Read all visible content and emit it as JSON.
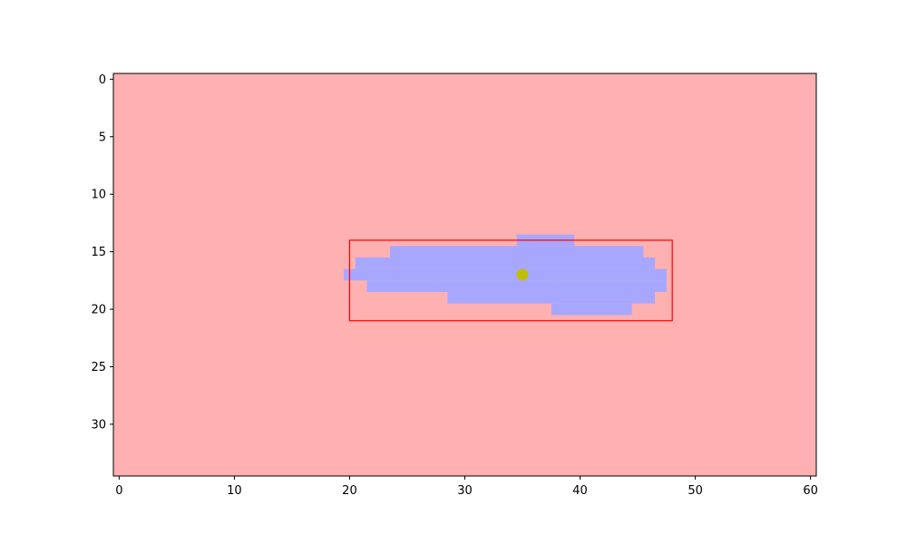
{
  "chart_data": {
    "type": "heatmap",
    "title": "",
    "xlabel": "",
    "ylabel": "",
    "xlim": [
      -0.5,
      60.5
    ],
    "ylim": [
      34.5,
      -0.5
    ],
    "x_ticks": [
      0,
      10,
      20,
      30,
      40,
      50,
      60
    ],
    "y_ticks": [
      0,
      5,
      10,
      15,
      20,
      25,
      30
    ],
    "x_tick_labels": [
      "0",
      "10",
      "20",
      "30",
      "40",
      "50",
      "60"
    ],
    "y_tick_labels": [
      "0",
      "5",
      "10",
      "15",
      "20",
      "25",
      "30"
    ],
    "background_color": "#ffb0b0",
    "mask_color": "#a7a7ff",
    "mask_rows": [
      {
        "row": 14,
        "col_start": 35,
        "col_end": 39
      },
      {
        "row": 15,
        "col_start": 24,
        "col_end": 45
      },
      {
        "row": 16,
        "col_start": 21,
        "col_end": 46
      },
      {
        "row": 17,
        "col_start": 20,
        "col_end": 47
      },
      {
        "row": 18,
        "col_start": 22,
        "col_end": 47
      },
      {
        "row": 19,
        "col_start": 29,
        "col_end": 46
      },
      {
        "row": 20,
        "col_start": 38,
        "col_end": 44
      }
    ],
    "bounding_box": {
      "x0": 20,
      "y0": 14,
      "x1": 48,
      "y1": 21,
      "color": "#ff0000"
    },
    "centroid": {
      "x": 35,
      "y": 17,
      "color": "#bfbf00"
    }
  }
}
